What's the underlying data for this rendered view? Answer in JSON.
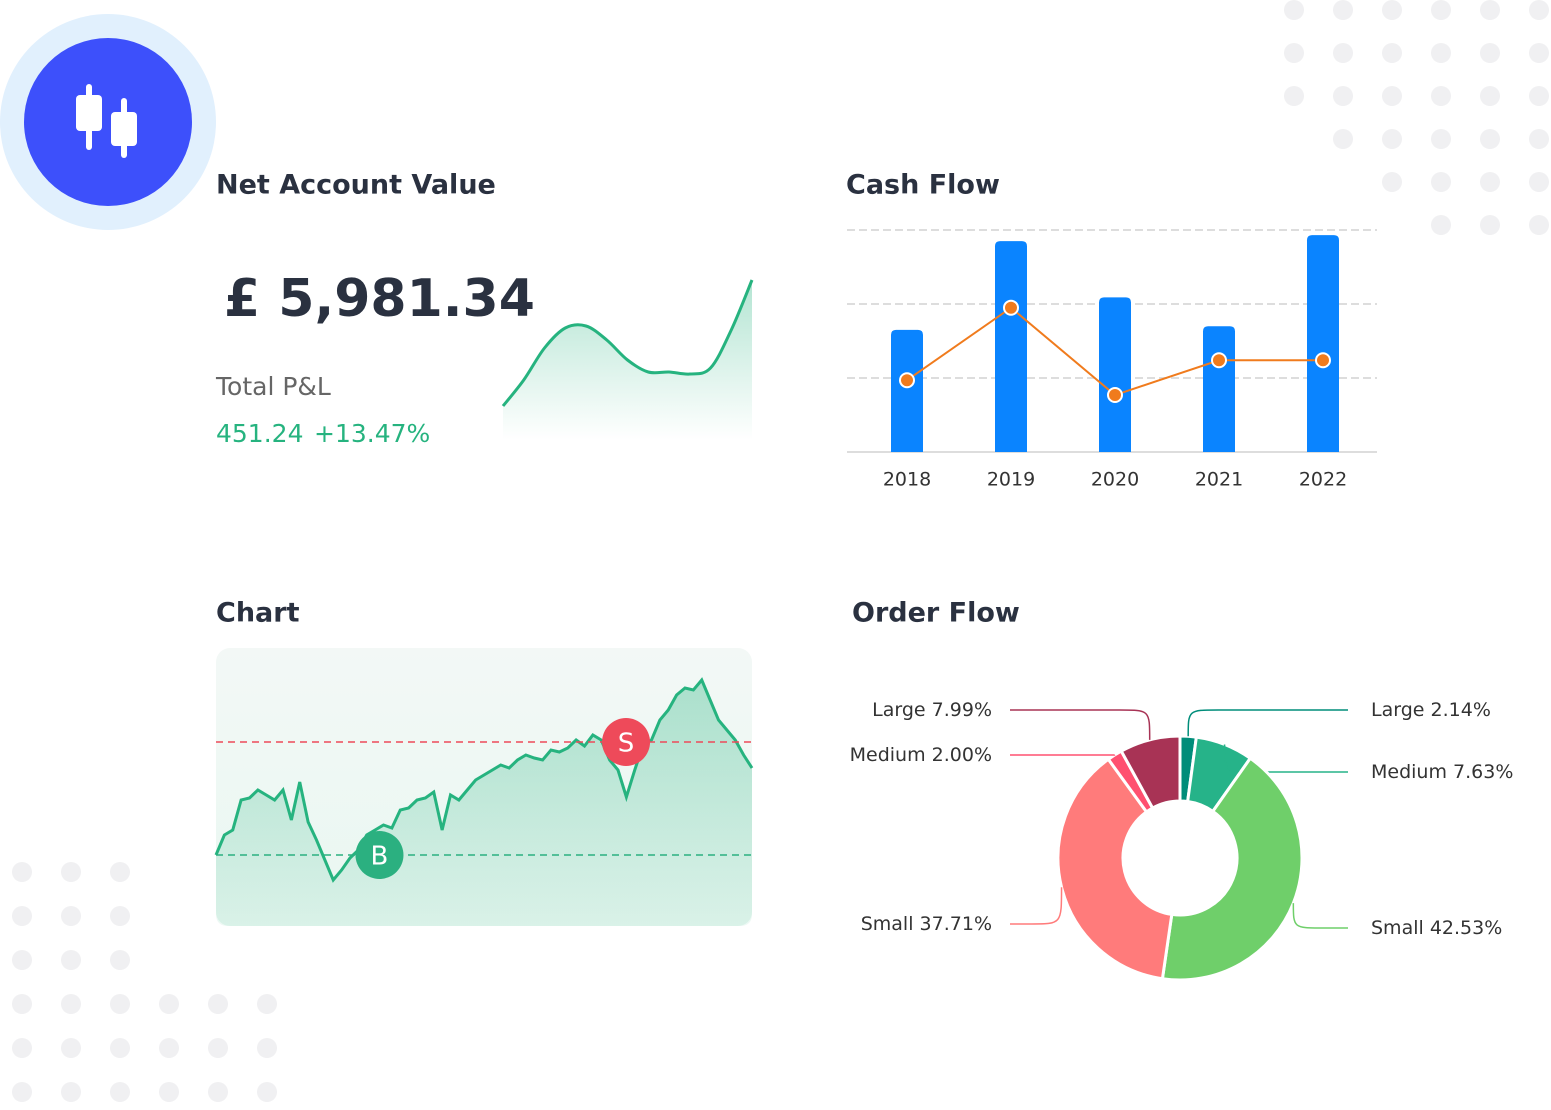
{
  "net_account": {
    "title": "Net Account Value",
    "value": "£ 5,981.34",
    "pnl_label": "Total P&L",
    "pnl_value": "451.24",
    "pnl_percent": "+13.47%"
  },
  "chart_data": [
    {
      "type": "area",
      "color": "#26b37f",
      "values": [
        34,
        60,
        92,
        112,
        114,
        100,
        80,
        68,
        68,
        66,
        72,
        110,
        160
      ],
      "ylim": [
        0,
        170
      ]
    },
    {
      "type": "bar",
      "title": "Cash Flow",
      "categories": [
        "2018",
        "2019",
        "2020",
        "2021",
        "2022"
      ],
      "series": [
        {
          "type": "bar",
          "color": "#0a84ff",
          "values": [
            165,
            285,
            209,
            170,
            293
          ]
        },
        {
          "type": "line",
          "color": "#f07b1d",
          "values": [
            97,
            195,
            77,
            124,
            124
          ]
        }
      ],
      "ylim": [
        0,
        300
      ],
      "yticks": [
        0,
        100,
        200,
        300
      ],
      "grid": true
    },
    {
      "type": "line",
      "title": "Chart",
      "color": "#26b37f",
      "values": [
        71,
        91,
        96,
        126,
        128,
        136,
        131,
        126,
        136,
        106,
        144,
        104,
        86,
        66,
        46,
        56,
        68,
        76,
        91,
        96,
        101,
        98,
        116,
        118,
        126,
        128,
        134,
        96,
        131,
        126,
        136,
        146,
        151,
        156,
        161,
        158,
        166,
        171,
        168,
        166,
        176,
        174,
        178,
        186,
        180,
        191,
        186,
        166,
        156,
        129,
        156,
        181,
        186,
        206,
        216,
        231,
        238,
        236,
        246,
        226,
        206,
        196,
        186,
        171,
        158
      ],
      "ylim": [
        0,
        278
      ],
      "buy": {
        "label": "B",
        "value": 71,
        "color": "#2bb080"
      },
      "sell": {
        "label": "S",
        "value": 184,
        "color": "#ee4a5a"
      }
    },
    {
      "type": "donut",
      "title": "Order Flow",
      "categories": [
        "Large",
        "Medium",
        "Small",
        "Small",
        "Medium",
        "Large"
      ],
      "values": [
        2.14,
        7.63,
        42.53,
        37.71,
        2.0,
        7.99
      ],
      "value_labels": [
        "2.14%",
        "7.63%",
        "42.53%",
        "37.71%",
        "2.00%",
        "7.99%"
      ],
      "colors": [
        "#008d7a",
        "#26b389",
        "#6fcf6a",
        "#ff7b7b",
        "#ff5070",
        "#a83355"
      ]
    }
  ]
}
